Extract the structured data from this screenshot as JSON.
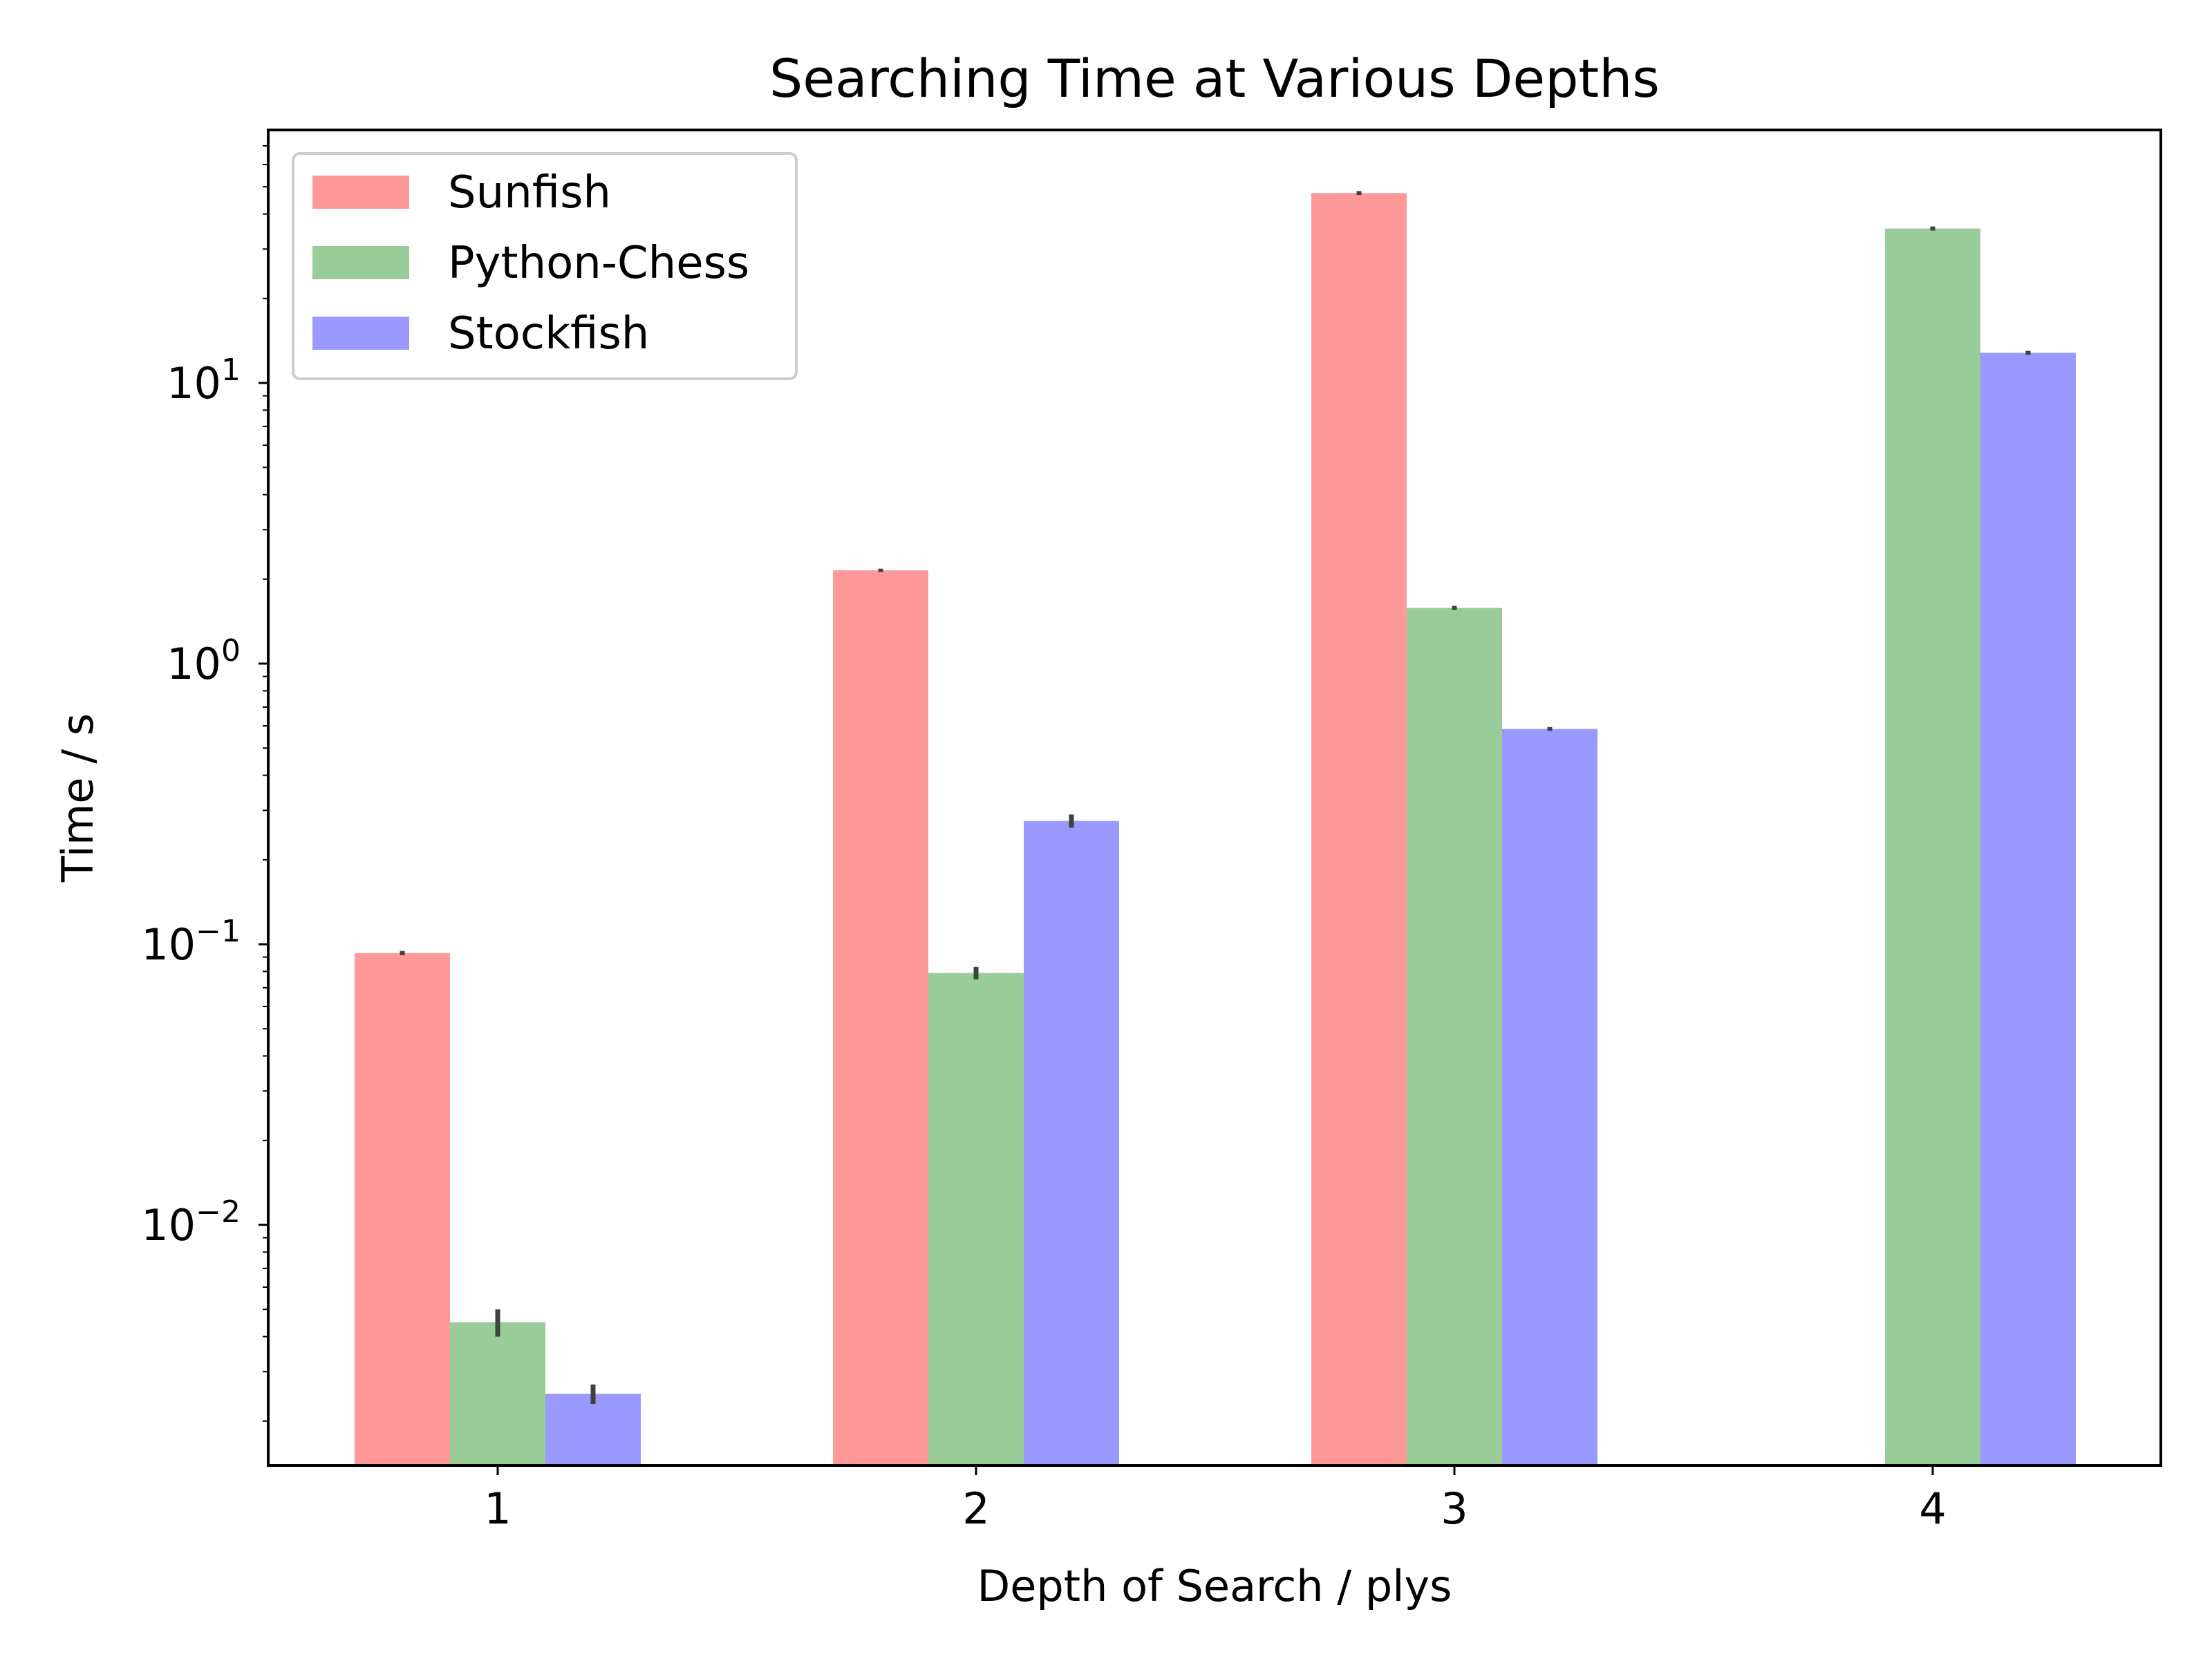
{
  "chart_data": {
    "type": "bar",
    "title": "Searching Time at Various Depths",
    "xlabel": "Depth of Search / plys",
    "ylabel": "Time / s",
    "yscale": "log",
    "ylim": [
      0.0015,
      80
    ],
    "yticks": [
      {
        "value": 0.01,
        "base": "10",
        "exponent": "−2"
      },
      {
        "value": 0.1,
        "base": "10",
        "exponent": "−1"
      },
      {
        "value": 1,
        "base": "10",
        "exponent": "0"
      },
      {
        "value": 10,
        "base": "10",
        "exponent": "1"
      }
    ],
    "categories": [
      "1",
      "2",
      "3",
      "4"
    ],
    "series": [
      {
        "name": "Sunfish",
        "color": "#ff9999",
        "values": [
          0.093,
          2.15,
          47.5,
          null
        ],
        "errors": [
          0.0005,
          0.02,
          0.3,
          null
        ]
      },
      {
        "name": "Python-Chess",
        "color": "#99cc99",
        "values": [
          0.0045,
          0.079,
          1.58,
          35.5
        ],
        "errors": [
          0.0005,
          0.004,
          0.01,
          0.2
        ]
      },
      {
        "name": "Stockfish",
        "color": "#9999ff",
        "values": [
          0.0025,
          0.275,
          0.585,
          12.8
        ],
        "errors": [
          0.0002,
          0.015,
          0.004,
          0.08
        ]
      }
    ],
    "legend": "top-left",
    "grid": false,
    "error_bar_color": "#404040"
  }
}
